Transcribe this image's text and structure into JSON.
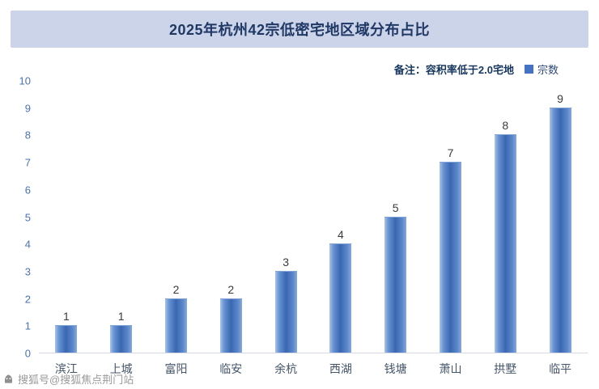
{
  "title": "2025年杭州42宗低密宅地区域分布占比",
  "note": {
    "label": "备注：容积率低于2.0宅地",
    "legend": "宗数",
    "legend_color": "#4472c4"
  },
  "watermark": "搜狐号@搜狐焦点荆门站",
  "colors": {
    "banner_bg": "#ccd4ea",
    "title_text": "#1f3864",
    "bar_main": "#4472c4",
    "axis_text": "#44546a"
  },
  "chart_data": {
    "type": "bar",
    "title": "2025年杭州42宗低密宅地区域分布占比",
    "categories": [
      "滨江",
      "上城",
      "富阳",
      "临安",
      "余杭",
      "西湖",
      "钱塘",
      "萧山",
      "拱墅",
      "临平"
    ],
    "values": [
      1,
      1,
      2,
      2,
      3,
      4,
      5,
      7,
      8,
      9
    ],
    "series": [
      {
        "name": "宗数",
        "values": [
          1,
          1,
          2,
          2,
          3,
          4,
          5,
          7,
          8,
          9
        ]
      }
    ],
    "xlabel": "",
    "ylabel": "",
    "ylim": [
      0,
      10
    ],
    "yticks": [
      0,
      1,
      2,
      3,
      4,
      5,
      6,
      7,
      8,
      9,
      10
    ],
    "grid": false,
    "legend_position": "top-right",
    "data_labels": true
  }
}
